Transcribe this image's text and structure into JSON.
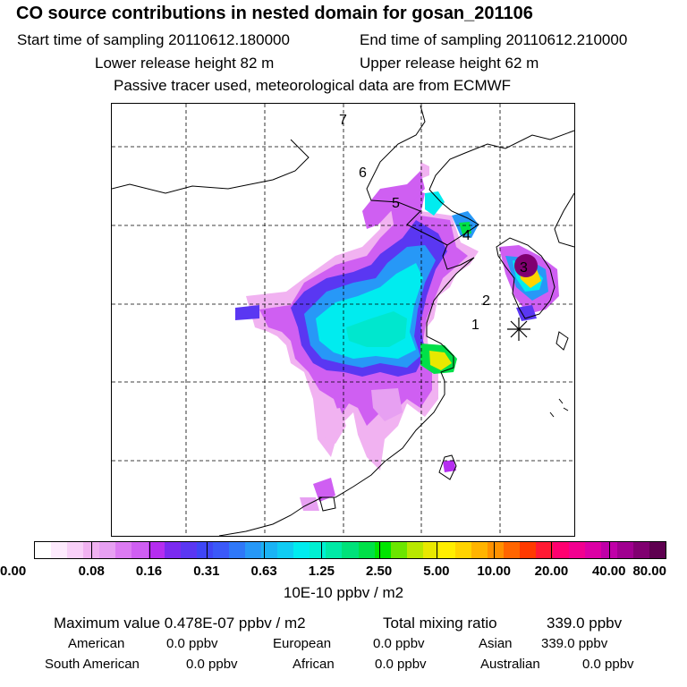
{
  "header": {
    "title": "CO  source contributions in nested domain for gosan_201106",
    "start_label": "Start time of sampling 20110612.180000",
    "end_label": "End time of sampling 20110612.210000",
    "lower_label": "Lower release height   82 m",
    "upper_label": "Upper release height   62 m",
    "note": "Passive tracer used, meteorological data are from ECMWF"
  },
  "map": {
    "markers": [
      "1",
      "2",
      "3",
      "4",
      "5",
      "6",
      "7"
    ],
    "station_symbol": "asterisk-icon"
  },
  "colorbar": {
    "colors": [
      "#ffffff",
      "#fdeafd",
      "#f8d0f8",
      "#f1b2f1",
      "#e7a0f2",
      "#dc7bf2",
      "#cf5ff2",
      "#b52df0",
      "#7b2af0",
      "#5a37f2",
      "#3f46f6",
      "#3b59f8",
      "#2f78f8",
      "#2798f7",
      "#1ab3f5",
      "#10ccf3",
      "#00ecef",
      "#00f0d2",
      "#00eaa6",
      "#00e27a",
      "#00e048",
      "#00e500",
      "#6be600",
      "#b8e800",
      "#e8e800",
      "#ffee00",
      "#ffd400",
      "#ffb400",
      "#ff9100",
      "#ff6500",
      "#ff3a00",
      "#ff1a33",
      "#ff0070",
      "#f20090",
      "#dc00a5",
      "#c000a8",
      "#a00090",
      "#800070",
      "#5e0050"
    ],
    "ticks": [
      "0.00",
      "0.08",
      "0.16",
      "0.31",
      "0.63",
      "1.25",
      "2.50",
      "5.00",
      "10.00",
      "20.00",
      "40.00",
      "80.00"
    ],
    "unit": "10E-10 ppbv / m2"
  },
  "stats": {
    "max_label": "Maximum value  0.478E-07 ppbv / m2",
    "total_label": "Total mixing ratio",
    "total_value": "339.0 ppbv",
    "rows": [
      [
        "American",
        "0.0 ppbv",
        "European",
        "0.0 ppbv",
        "Asian",
        "339.0 ppbv"
      ],
      [
        "South American",
        "0.0 ppbv",
        "African",
        "0.0 ppbv",
        "Australian",
        "0.0 ppbv"
      ]
    ]
  }
}
